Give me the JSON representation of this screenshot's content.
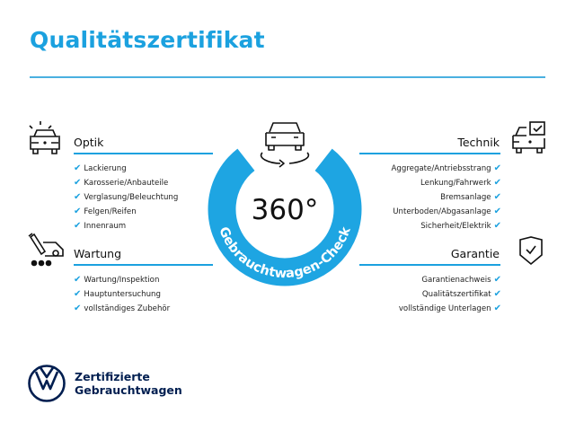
{
  "title": "Qualitätszertifikat",
  "accent_color": "#1ba1df",
  "center": {
    "big_text": "360°",
    "ring_text": "Gebrauchtwagen-Check",
    "icon": "car-rotate-icon"
  },
  "sections": {
    "optik": {
      "heading": "Optik",
      "icon": "car-lights-icon",
      "items": [
        "Lackierung",
        "Karosserie/Anbauteile",
        "Verglasung/Beleuchtung",
        "Felgen/Reifen",
        "Innenraum"
      ]
    },
    "wartung": {
      "heading": "Wartung",
      "icon": "service-wrench-icon",
      "items": [
        "Wartung/Inspektion",
        "Hauptuntersuchung",
        "vollständiges Zubehör"
      ]
    },
    "technik": {
      "heading": "Technik",
      "icon": "car-checkbox-icon",
      "items": [
        "Aggregate/Antriebsstrang",
        "Lenkung/Fahrwerk",
        "Bremsanlage",
        "Unterboden/Abgasanlage",
        "Sicherheit/Elektrik"
      ]
    },
    "garantie": {
      "heading": "Garantie",
      "icon": "shield-check-icon",
      "items": [
        "Garantienachweis",
        "Qualitätszertifikat",
        "vollständige Unterlagen"
      ]
    }
  },
  "check_glyph": "✔",
  "footer": {
    "line1": "Zertifizierte",
    "line2": "Gebrauchtwagen",
    "logo": "vw-logo"
  }
}
